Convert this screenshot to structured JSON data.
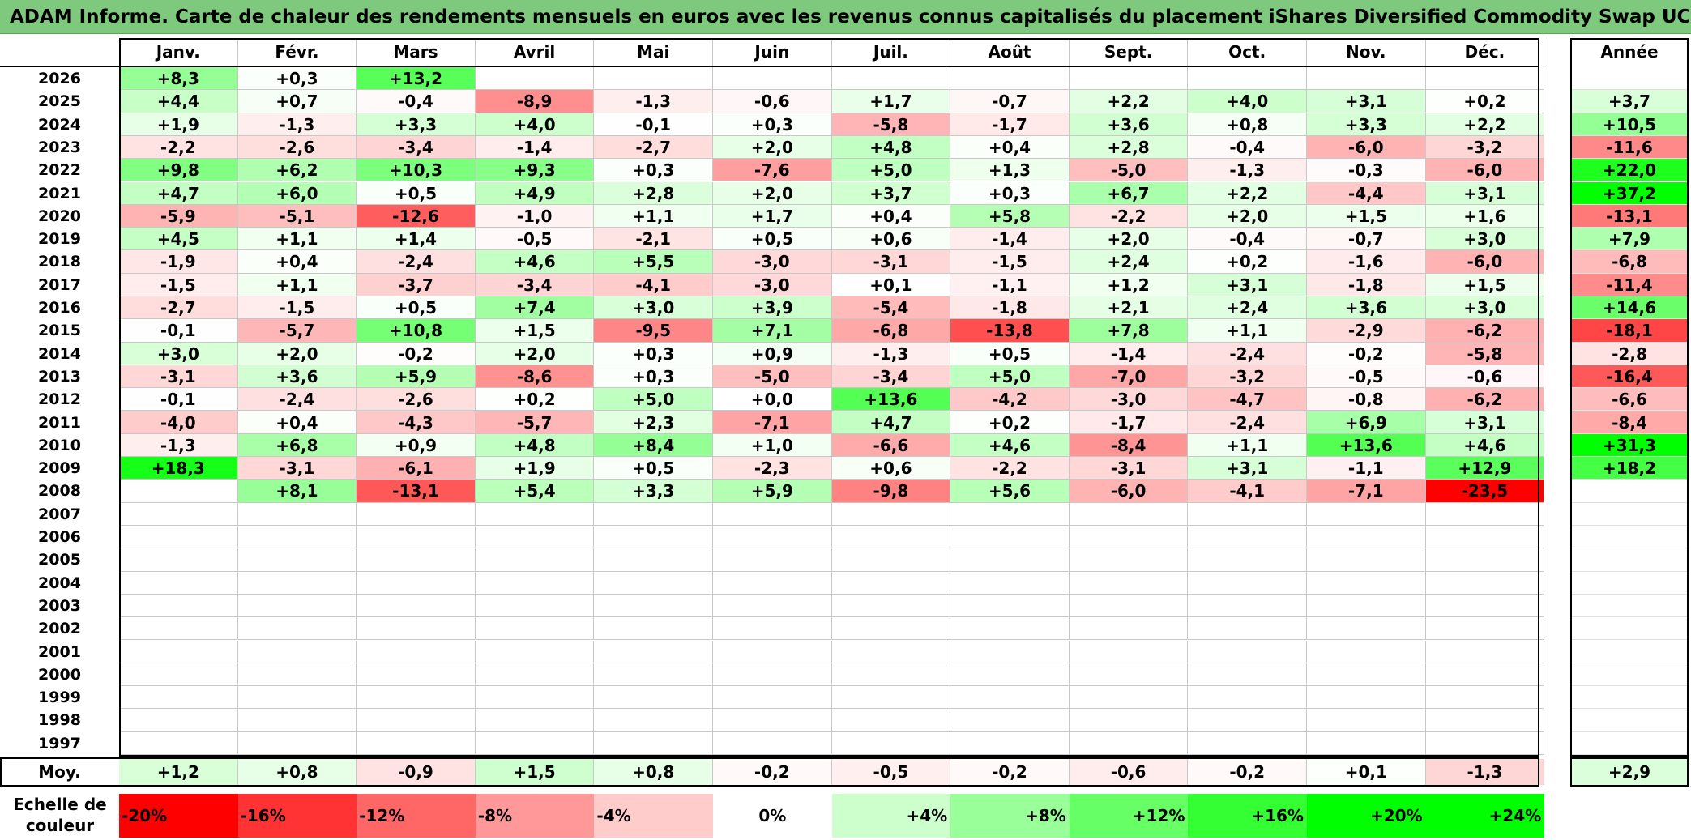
{
  "chart_data": {
    "type": "heatmap",
    "title": "ADAM Informe. Carte de chaleur des rendements mensuels en euros avec les revenus connus capitalisés du placement iShares Diversified Commodity Swap UCITS ETF Acc",
    "months": [
      "Janv.",
      "Févr.",
      "Mars",
      "Avril",
      "Mai",
      "Juin",
      "Juil.",
      "Août",
      "Sept.",
      "Oct.",
      "Nov.",
      "Déc."
    ],
    "year_label": "Année",
    "years": [
      "2026",
      "2025",
      "2024",
      "2023",
      "2022",
      "2021",
      "2020",
      "2019",
      "2018",
      "2017",
      "2016",
      "2015",
      "2014",
      "2013",
      "2012",
      "2011",
      "2010",
      "2009",
      "2008",
      "2007",
      "2006",
      "2005",
      "2004",
      "2003",
      "2002",
      "2001",
      "2000",
      "1999",
      "1998",
      "1997"
    ],
    "values": [
      [
        "+8,3",
        "+0,3",
        "+13,2",
        "",
        "",
        "",
        "",
        "",
        "",
        "",
        "",
        ""
      ],
      [
        "+4,4",
        "+0,7",
        "-0,4",
        "-8,9",
        "-1,3",
        "-0,6",
        "+1,7",
        "-0,7",
        "+2,2",
        "+4,0",
        "+3,1",
        "+0,2"
      ],
      [
        "+1,9",
        "-1,3",
        "+3,3",
        "+4,0",
        "-0,1",
        "+0,3",
        "-5,8",
        "-1,7",
        "+3,6",
        "+0,8",
        "+3,3",
        "+2,2"
      ],
      [
        "-2,2",
        "-2,6",
        "-3,4",
        "-1,4",
        "-2,7",
        "+2,0",
        "+4,8",
        "+0,4",
        "+2,8",
        "-0,4",
        "-6,0",
        "-3,2"
      ],
      [
        "+9,8",
        "+6,2",
        "+10,3",
        "+9,3",
        "+0,3",
        "-7,6",
        "+5,0",
        "+1,3",
        "-5,0",
        "-1,3",
        "-0,3",
        "-6,0"
      ],
      [
        "+4,7",
        "+6,0",
        "+0,5",
        "+4,9",
        "+2,8",
        "+2,0",
        "+3,7",
        "+0,3",
        "+6,7",
        "+2,2",
        "-4,4",
        "+3,1"
      ],
      [
        "-5,9",
        "-5,1",
        "-12,6",
        "-1,0",
        "+1,1",
        "+1,7",
        "+0,4",
        "+5,8",
        "-2,2",
        "+2,0",
        "+1,5",
        "+1,6"
      ],
      [
        "+4,5",
        "+1,1",
        "+1,4",
        "-0,5",
        "-2,1",
        "+0,5",
        "+0,6",
        "-1,4",
        "+2,0",
        "-0,4",
        "-0,7",
        "+3,0"
      ],
      [
        "-1,9",
        "+0,4",
        "-2,4",
        "+4,6",
        "+5,5",
        "-3,0",
        "-3,1",
        "-1,5",
        "+2,4",
        "+0,2",
        "-1,6",
        "-6,0"
      ],
      [
        "-1,5",
        "+1,1",
        "-3,7",
        "-3,4",
        "-4,1",
        "-3,0",
        "+0,1",
        "-1,1",
        "+1,2",
        "+3,1",
        "-1,8",
        "+1,5"
      ],
      [
        "-2,7",
        "-1,5",
        "+0,5",
        "+7,4",
        "+3,0",
        "+3,9",
        "-5,4",
        "-1,8",
        "+2,1",
        "+2,4",
        "+3,6",
        "+3,0"
      ],
      [
        "-0,1",
        "-5,7",
        "+10,8",
        "+1,5",
        "-9,5",
        "+7,1",
        "-6,8",
        "-13,8",
        "+7,8",
        "+1,1",
        "-2,9",
        "-6,2"
      ],
      [
        "+3,0",
        "+2,0",
        "-0,2",
        "+2,0",
        "+0,3",
        "+0,9",
        "-1,3",
        "+0,5",
        "-1,4",
        "-2,4",
        "-0,2",
        "-5,8"
      ],
      [
        "-3,1",
        "+3,6",
        "+5,9",
        "-8,6",
        "+0,3",
        "-5,0",
        "-3,4",
        "+5,0",
        "-7,0",
        "-3,2",
        "-0,5",
        "-0,6"
      ],
      [
        "-0,1",
        "-2,4",
        "-2,6",
        "+0,2",
        "+5,0",
        "+0,0",
        "+13,6",
        "-4,2",
        "-3,0",
        "-4,7",
        "-0,8",
        "-6,2"
      ],
      [
        "-4,0",
        "+0,4",
        "-4,3",
        "-5,7",
        "+2,3",
        "-7,1",
        "+4,7",
        "+0,2",
        "-1,7",
        "-2,4",
        "+6,9",
        "+3,1"
      ],
      [
        "-1,3",
        "+6,8",
        "+0,9",
        "+4,8",
        "+8,4",
        "+1,0",
        "-6,6",
        "+4,6",
        "-8,4",
        "+1,1",
        "+13,6",
        "+4,6"
      ],
      [
        "+18,3",
        "-3,1",
        "-6,1",
        "+1,9",
        "+0,5",
        "-2,3",
        "+0,6",
        "-2,2",
        "-3,1",
        "+3,1",
        "-1,1",
        "+12,9"
      ],
      [
        "",
        "+8,1",
        "-13,1",
        "+5,4",
        "+3,3",
        "+5,9",
        "-9,8",
        "+5,6",
        "-6,0",
        "-4,1",
        "-7,1",
        "-23,5"
      ],
      [
        "",
        "",
        "",
        "",
        "",
        "",
        "",
        "",
        "",
        "",
        "",
        ""
      ],
      [
        "",
        "",
        "",
        "",
        "",
        "",
        "",
        "",
        "",
        "",
        "",
        ""
      ],
      [
        "",
        "",
        "",
        "",
        "",
        "",
        "",
        "",
        "",
        "",
        "",
        ""
      ],
      [
        "",
        "",
        "",
        "",
        "",
        "",
        "",
        "",
        "",
        "",
        "",
        ""
      ],
      [
        "",
        "",
        "",
        "",
        "",
        "",
        "",
        "",
        "",
        "",
        "",
        ""
      ],
      [
        "",
        "",
        "",
        "",
        "",
        "",
        "",
        "",
        "",
        "",
        "",
        ""
      ],
      [
        "",
        "",
        "",
        "",
        "",
        "",
        "",
        "",
        "",
        "",
        "",
        ""
      ],
      [
        "",
        "",
        "",
        "",
        "",
        "",
        "",
        "",
        "",
        "",
        "",
        ""
      ],
      [
        "",
        "",
        "",
        "",
        "",
        "",
        "",
        "",
        "",
        "",
        "",
        ""
      ],
      [
        "",
        "",
        "",
        "",
        "",
        "",
        "",
        "",
        "",
        "",
        "",
        ""
      ],
      [
        "",
        "",
        "",
        "",
        "",
        "",
        "",
        "",
        "",
        "",
        "",
        ""
      ]
    ],
    "annual": [
      "",
      "+3,7",
      "+10,5",
      "-11,6",
      "+22,0",
      "+37,2",
      "-13,1",
      "+7,9",
      "-6,8",
      "-11,4",
      "+14,6",
      "-18,1",
      "-2,8",
      "-16,4",
      "-6,6",
      "-8,4",
      "+31,3",
      "+18,2",
      "",
      "",
      "",
      "",
      "",
      "",
      "",
      "",
      "",
      "",
      "",
      ""
    ],
    "average_label": "Moy.",
    "average": [
      "+1,2",
      "+0,8",
      "-0,9",
      "+1,5",
      "+0,8",
      "-0,2",
      "-0,5",
      "-0,2",
      "-0,6",
      "-0,2",
      "+0,1",
      "-1,3"
    ],
    "average_annual": "+2,9",
    "scale_label": "Echelle de couleur",
    "scale": [
      "-20%",
      "-16%",
      "-12%",
      "-8%",
      "-4%",
      "0%",
      "+4%",
      "+8%",
      "+12%",
      "+16%",
      "+20%",
      "+24%"
    ],
    "colors": {
      "negative": "#ff0000",
      "positive": "#00ff00",
      "neutral": "#ffffff",
      "title_bg": "#7fc97f"
    }
  }
}
